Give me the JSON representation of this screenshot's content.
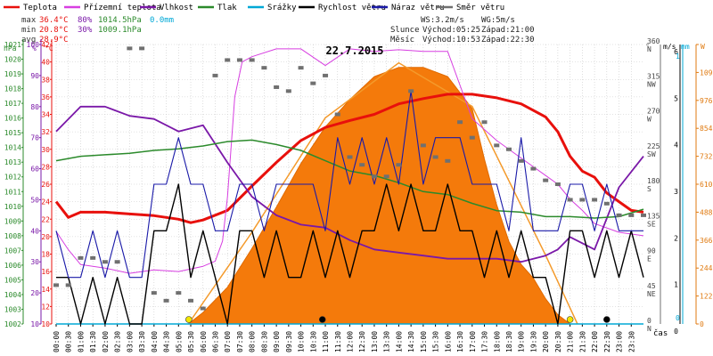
{
  "legend": [
    {
      "key": "teplota",
      "label": "Teplota",
      "color": "#e8100c"
    },
    {
      "key": "prizemni",
      "label": "Přízemní teplota",
      "color": "#d73fe1"
    },
    {
      "key": "vlhkost",
      "label": "Vlhkost",
      "color": "#7a18a8"
    },
    {
      "key": "tlak",
      "label": "Tlak",
      "color": "#2b8a2b"
    },
    {
      "key": "srazky",
      "label": "Srážky",
      "color": "#00a8d6"
    },
    {
      "key": "rychlost",
      "label": "Rychlost větru",
      "color": "#000000"
    },
    {
      "key": "naraz",
      "label": "Náraz větru",
      "color": "#1a1aa8"
    },
    {
      "key": "smer",
      "label": "Směr větru",
      "color": "#707070"
    }
  ],
  "stats": {
    "max": {
      "label": "max",
      "temp": "36.4°C",
      "hum": "80%",
      "press": "1014.5hPa",
      "rain": "0.0mm"
    },
    "min": {
      "label": "min",
      "temp": "20.8°C",
      "hum": "30%",
      "press": "1009.1hPa"
    },
    "avg": {
      "label": "avg",
      "temp": "28.9°C"
    }
  },
  "wind_info": {
    "ws": "WS:3.2m/s",
    "wg": "WG:5m/s"
  },
  "sun": {
    "label": "Slunce",
    "rise": "Východ:05:25",
    "set": "Západ:21:00"
  },
  "moon": {
    "label": "Měsíc",
    "rise": "Východ:10:53",
    "set": "Západ:22:30"
  },
  "chart_data": {
    "type": "line",
    "title": "22.7.2015",
    "xlabel": "čas",
    "x_ticks": [
      "00:00",
      "00:30",
      "01:00",
      "01:30",
      "02:00",
      "02:30",
      "03:00",
      "03:30",
      "04:00",
      "04:30",
      "05:00",
      "05:30",
      "06:00",
      "06:30",
      "07:00",
      "07:30",
      "08:00",
      "08:30",
      "09:00",
      "09:30",
      "10:00",
      "10:30",
      "11:00",
      "11:30",
      "12:00",
      "12:30",
      "13:00",
      "13:30",
      "14:00",
      "14:30",
      "15:00",
      "15:30",
      "16:00",
      "16:30",
      "17:00",
      "17:30",
      "18:00",
      "18:30",
      "19:00",
      "19:30",
      "20:00",
      "20:30",
      "21:00",
      "21:30",
      "22:00",
      "22:30",
      "23:00",
      "23:30"
    ],
    "axes": {
      "hpa": {
        "label": "hPa",
        "min": 1002,
        "max": 1021,
        "ticks": [
          "1002",
          "1003",
          "1004",
          "1005",
          "1006",
          "1007",
          "1008",
          "1009",
          "1010",
          "1011",
          "1012",
          "1013",
          "1014",
          "1015",
          "1016",
          "1017",
          "1018",
          "1019",
          "1020",
          "1021"
        ],
        "color": "#2b8a2b"
      },
      "pct": {
        "label": "%",
        "min": 10,
        "max": 100,
        "ticks": [
          "10",
          "20",
          "30",
          "40",
          "50",
          "60",
          "70",
          "80",
          "90",
          "100"
        ],
        "color": "#7a18a8"
      },
      "temp": {
        "label": "°C",
        "min": 10,
        "max": 42,
        "ticks": [
          "10",
          "12",
          "14",
          "16",
          "18",
          "20",
          "22",
          "24",
          "26",
          "28",
          "30",
          "32",
          "34",
          "36",
          "38",
          "40",
          "42"
        ],
        "color": "#e8100c"
      },
      "dir": {
        "label": "°",
        "ticks": [
          {
            "v": 0,
            "deg": "0",
            "c": "N"
          },
          {
            "v": 45,
            "deg": "45",
            "c": "NE"
          },
          {
            "v": 90,
            "deg": "90",
            "c": "E"
          },
          {
            "v": 135,
            "deg": "135",
            "c": "SE"
          },
          {
            "v": 180,
            "deg": "180",
            "c": "S"
          },
          {
            "v": 225,
            "deg": "225",
            "c": "SW"
          },
          {
            "v": 270,
            "deg": "270",
            "c": "W"
          },
          {
            "v": 315,
            "deg": "315",
            "c": "NW"
          },
          {
            "v": 360,
            "deg": "360",
            "c": "N"
          }
        ],
        "color": "#707070"
      },
      "ms": {
        "label": "m/s",
        "min": 0,
        "max": 6,
        "ticks": [
          "0",
          "1",
          "2",
          "3",
          "4",
          "5",
          "6"
        ],
        "color": "#000000"
      },
      "mm": {
        "label": "mm",
        "min": 0,
        "max": 1,
        "ticks": [
          "0",
          "1"
        ],
        "color": "#00a8d6"
      },
      "wm2": {
        "label": "W",
        "min": 0,
        "max": 1220,
        "ticks": [
          "0",
          "122",
          "244",
          "366",
          "488",
          "610",
          "732",
          "854",
          "976",
          "1098",
          "1220"
        ],
        "color": "#e07a10"
      }
    },
    "series": [
      {
        "name": "Teplota",
        "axis": "temp",
        "x": [
          0,
          0.5,
          1,
          2,
          3,
          4,
          5,
          5.5,
          6,
          7,
          8,
          9,
          10,
          11,
          12,
          13,
          14,
          15,
          16,
          17,
          18,
          19,
          20,
          20.5,
          21,
          21.5,
          22,
          22.5,
          23,
          23.5,
          24
        ],
        "values": [
          24.0,
          22.2,
          22.8,
          22.8,
          22.6,
          22.4,
          22.0,
          21.6,
          21.9,
          23.0,
          25.8,
          28.5,
          31.0,
          32.5,
          33.3,
          34.0,
          35.2,
          35.8,
          36.3,
          36.3,
          35.9,
          35.2,
          33.7,
          32.0,
          29.2,
          27.5,
          26.8,
          25.0,
          24.0,
          23.0,
          22.8
        ]
      },
      {
        "name": "Přízemní teplota",
        "axis": "temp",
        "x": [
          0,
          0.5,
          1,
          2,
          3,
          4,
          5,
          6,
          6.5,
          6.8,
          7,
          7.3,
          7.6,
          8,
          9,
          10,
          11,
          12,
          13,
          14,
          15,
          16,
          17,
          18,
          19,
          20,
          20.5,
          21,
          21.5,
          22,
          23,
          24
        ],
        "values": [
          20.6,
          18.5,
          16.8,
          16.4,
          15.8,
          16.2,
          16.0,
          16.6,
          17.2,
          19.5,
          24.5,
          36.0,
          40.0,
          40.6,
          41.5,
          41.5,
          39.6,
          41.5,
          41.2,
          41.4,
          41.2,
          41.2,
          33.5,
          31.0,
          29.0,
          27.0,
          26.0,
          24.3,
          23.0,
          21.5,
          20.5,
          20.1
        ]
      },
      {
        "name": "Vlhkost",
        "axis": "pct",
        "x": [
          0,
          1,
          2,
          3,
          4,
          5,
          6,
          7,
          8,
          9,
          10,
          11,
          12,
          13,
          14,
          15,
          16,
          17,
          18,
          19,
          20,
          20.5,
          21,
          21.5,
          22,
          23,
          24
        ],
        "values": [
          72,
          80,
          80,
          77,
          76,
          72,
          74,
          62,
          51,
          45,
          42,
          41,
          37,
          34,
          33,
          32,
          31,
          31,
          31,
          30,
          32,
          34,
          38,
          36,
          34,
          54,
          64
        ]
      },
      {
        "name": "Tlak",
        "axis": "hpa",
        "x": [
          0,
          1,
          2,
          3,
          4,
          5,
          6,
          7,
          8,
          9,
          10,
          11,
          12,
          13,
          14,
          15,
          16,
          17,
          18,
          19,
          20,
          21,
          22,
          23,
          24
        ],
        "values": [
          1013.1,
          1013.4,
          1013.5,
          1013.6,
          1013.8,
          1013.9,
          1014.1,
          1014.4,
          1014.5,
          1014.2,
          1013.8,
          1013.1,
          1012.4,
          1012.1,
          1011.6,
          1011.0,
          1010.8,
          1010.2,
          1009.7,
          1009.6,
          1009.3,
          1009.3,
          1009.2,
          1009.3,
          1009.8
        ]
      },
      {
        "name": "Srážky",
        "axis": "mm",
        "x": [
          0,
          24
        ],
        "values": [
          0,
          0
        ]
      },
      {
        "name": "Rychlost větru",
        "axis": "ms",
        "x": [
          0,
          0.5,
          1,
          1.5,
          2,
          2.5,
          3,
          3.5,
          4,
          4.5,
          5,
          5.5,
          6,
          6.5,
          7,
          7.5,
          8,
          8.5,
          9,
          9.5,
          10,
          10.5,
          11,
          11.5,
          12,
          12.5,
          13,
          13.5,
          14,
          14.5,
          15,
          15.5,
          16,
          16.5,
          17,
          17.5,
          18,
          18.5,
          19,
          19.5,
          20,
          20.5,
          21,
          21.5,
          22,
          22.5,
          23,
          23.5,
          24
        ],
        "values": [
          1,
          1,
          0,
          1,
          0,
          1,
          0,
          0,
          2,
          2,
          3,
          1,
          2,
          1,
          0,
          2,
          2,
          1,
          2,
          1,
          1,
          2,
          1,
          2,
          1,
          2,
          2,
          3,
          2,
          3,
          2,
          2,
          3,
          2,
          2,
          1,
          2,
          1,
          2,
          1,
          1,
          0,
          2,
          2,
          1,
          2,
          1,
          2,
          1
        ]
      },
      {
        "name": "Náraz větru",
        "axis": "ms",
        "x": [
          0,
          0.5,
          1,
          1.5,
          2,
          2.5,
          3,
          3.5,
          4,
          4.5,
          5,
          5.5,
          6,
          6.5,
          7,
          7.5,
          8,
          8.5,
          9,
          9.5,
          10,
          10.5,
          11,
          11.5,
          12,
          12.5,
          13,
          13.5,
          14,
          14.5,
          15,
          15.5,
          16,
          16.5,
          17,
          17.5,
          18,
          18.5,
          19,
          19.5,
          20,
          20.5,
          21,
          21.5,
          22,
          22.5,
          23,
          23.5,
          24
        ],
        "values": [
          2,
          1,
          1,
          2,
          1,
          2,
          1,
          1,
          3,
          3,
          4,
          3,
          3,
          2,
          2,
          3,
          3,
          2,
          3,
          3,
          3,
          3,
          2,
          4,
          3,
          4,
          3,
          4,
          3,
          5,
          3,
          4,
          4,
          4,
          3,
          3,
          3,
          2,
          4,
          2,
          2,
          2,
          3,
          3,
          2,
          3,
          2,
          2,
          2
        ]
      },
      {
        "name": "Směr větru",
        "axis": "dir",
        "type": "scatter",
        "x": [
          0,
          0.5,
          1,
          1.5,
          2,
          2.5,
          3,
          3.5,
          4,
          4.5,
          5,
          5.5,
          6,
          6.5,
          7,
          7.5,
          8,
          8.5,
          9,
          9.5,
          10,
          10.5,
          11,
          11.5,
          12,
          12.5,
          13,
          13.5,
          14,
          14.5,
          15,
          15.5,
          16,
          16.5,
          17,
          17.5,
          18,
          18.5,
          19,
          19.5,
          20,
          20.5,
          21,
          21.5,
          22,
          22.5,
          23,
          23.5,
          24
        ],
        "values": [
          50,
          50,
          85,
          85,
          80,
          80,
          355,
          355,
          40,
          30,
          40,
          30,
          20,
          320,
          340,
          340,
          340,
          330,
          305,
          300,
          330,
          310,
          320,
          270,
          215,
          205,
          190,
          190,
          205,
          300,
          230,
          215,
          210,
          260,
          240,
          260,
          230,
          225,
          210,
          200,
          185,
          180,
          160,
          160,
          160,
          155,
          140,
          140,
          140
        ]
      }
    ],
    "solar": {
      "name": "Sluneční záření",
      "axis": "wm2",
      "x": [
        5.4,
        6,
        7,
        8,
        9,
        10,
        11,
        12,
        13,
        14,
        15,
        16,
        17,
        17.5,
        18,
        18.5,
        19,
        19.5,
        20,
        20.5,
        21
      ],
      "values": [
        0,
        50,
        160,
        330,
        510,
        700,
        860,
        980,
        1080,
        1120,
        1120,
        1080,
        940,
        720,
        520,
        360,
        260,
        200,
        110,
        40,
        0
      ]
    },
    "solar_model": {
      "x": [
        5.4,
        8,
        11,
        14,
        17,
        20,
        21.3
      ],
      "values": [
        0,
        400,
        900,
        1140,
        950,
        300,
        0
      ]
    },
    "markers": [
      {
        "x": 5.42,
        "color": "#f2e600",
        "type": "sunrise"
      },
      {
        "x": 10.88,
        "color": "#000000",
        "type": "moonrise"
      },
      {
        "x": 21.0,
        "color": "#f2e600",
        "type": "sunset"
      },
      {
        "x": 22.5,
        "color": "#000000",
        "type": "moonset"
      }
    ],
    "grid": true
  }
}
